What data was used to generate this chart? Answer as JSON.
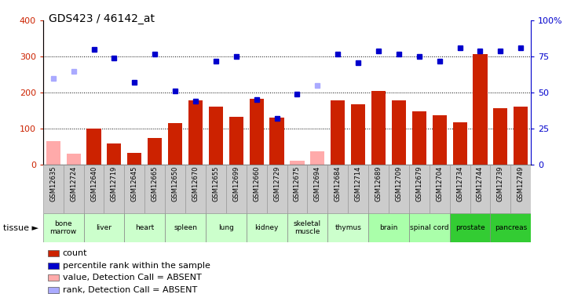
{
  "title": "GDS423 / 46142_at",
  "samples": [
    "GSM12635",
    "GSM12724",
    "GSM12640",
    "GSM12719",
    "GSM12645",
    "GSM12665",
    "GSM12650",
    "GSM12670",
    "GSM12655",
    "GSM12699",
    "GSM12660",
    "GSM12729",
    "GSM12675",
    "GSM12694",
    "GSM12684",
    "GSM12714",
    "GSM12689",
    "GSM12709",
    "GSM12679",
    "GSM12704",
    "GSM12734",
    "GSM12744",
    "GSM12739",
    "GSM12749"
  ],
  "tissues": [
    {
      "name": "bone\nmarrow",
      "start": 0,
      "end": 2,
      "color": "#ccffcc"
    },
    {
      "name": "liver",
      "start": 2,
      "end": 4,
      "color": "#ccffcc"
    },
    {
      "name": "heart",
      "start": 4,
      "end": 6,
      "color": "#ccffcc"
    },
    {
      "name": "spleen",
      "start": 6,
      "end": 8,
      "color": "#ccffcc"
    },
    {
      "name": "lung",
      "start": 8,
      "end": 10,
      "color": "#ccffcc"
    },
    {
      "name": "kidney",
      "start": 10,
      "end": 12,
      "color": "#ccffcc"
    },
    {
      "name": "skeletal\nmuscle",
      "start": 12,
      "end": 14,
      "color": "#ccffcc"
    },
    {
      "name": "thymus",
      "start": 14,
      "end": 16,
      "color": "#ccffcc"
    },
    {
      "name": "brain",
      "start": 16,
      "end": 18,
      "color": "#aaffaa"
    },
    {
      "name": "spinal cord",
      "start": 18,
      "end": 20,
      "color": "#aaffaa"
    },
    {
      "name": "prostate",
      "start": 20,
      "end": 22,
      "color": "#33cc33"
    },
    {
      "name": "pancreas",
      "start": 22,
      "end": 24,
      "color": "#33cc33"
    }
  ],
  "bar_values": [
    65,
    30,
    100,
    58,
    33,
    75,
    115,
    178,
    162,
    132,
    182,
    130,
    10,
    36,
    178,
    168,
    205,
    178,
    148,
    138,
    118,
    307,
    157,
    161
  ],
  "bar_absent": [
    true,
    true,
    false,
    false,
    false,
    false,
    false,
    false,
    false,
    false,
    false,
    false,
    true,
    true,
    false,
    false,
    false,
    false,
    false,
    false,
    false,
    false,
    false,
    false
  ],
  "rank_values": [
    60,
    65,
    80,
    74,
    57,
    77,
    51,
    44,
    72,
    75,
    45,
    32,
    49,
    55,
    77,
    71,
    79,
    77,
    75,
    72,
    81,
    79,
    79,
    81
  ],
  "rank_absent": [
    true,
    true,
    false,
    false,
    false,
    false,
    false,
    false,
    false,
    false,
    false,
    false,
    false,
    true,
    false,
    false,
    false,
    false,
    false,
    false,
    false,
    false,
    false,
    false
  ],
  "ylim_left": [
    0,
    400
  ],
  "ylim_right": [
    0,
    100
  ],
  "yticks_left": [
    0,
    100,
    200,
    300,
    400
  ],
  "yticks_right": [
    0,
    25,
    50,
    75,
    100
  ],
  "bar_color": "#cc2200",
  "bar_absent_color": "#ffaaaa",
  "rank_color": "#0000cc",
  "rank_absent_color": "#aaaaff",
  "legend_items": [
    {
      "label": "count",
      "color": "#cc2200"
    },
    {
      "label": "percentile rank within the sample",
      "color": "#0000cc"
    },
    {
      "label": "value, Detection Call = ABSENT",
      "color": "#ffaaaa"
    },
    {
      "label": "rank, Detection Call = ABSENT",
      "color": "#aaaaff"
    }
  ]
}
